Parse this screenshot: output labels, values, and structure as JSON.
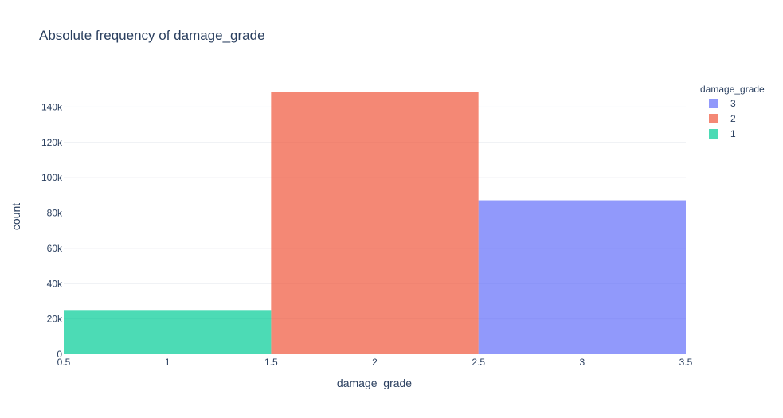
{
  "chart_data": {
    "type": "bar",
    "title": "Absolute frequency of damage_grade",
    "xlabel": "damage_grade",
    "ylabel": "count",
    "xlim": [
      0.5,
      3.5
    ],
    "ylim": [
      0,
      151000
    ],
    "x_ticks": [
      "0.5",
      "1",
      "1.5",
      "2",
      "2.5",
      "3",
      "3.5"
    ],
    "x_tick_values": [
      0.5,
      1,
      1.5,
      2,
      2.5,
      3,
      3.5
    ],
    "y_ticks": [
      "0",
      "20k",
      "40k",
      "60k",
      "80k",
      "100k",
      "120k",
      "140k"
    ],
    "y_tick_values": [
      0,
      20000,
      40000,
      60000,
      80000,
      100000,
      120000,
      140000
    ],
    "grid": true,
    "legend_title": "damage_grade",
    "legend_position": "top-right",
    "series": [
      {
        "name": "3",
        "x": 3,
        "value": 87200,
        "color": "#636efa"
      },
      {
        "name": "2",
        "x": 2,
        "value": 148300,
        "color": "#ef553b"
      },
      {
        "name": "1",
        "x": 1,
        "value": 25100,
        "color": "#00cc96"
      }
    ]
  }
}
